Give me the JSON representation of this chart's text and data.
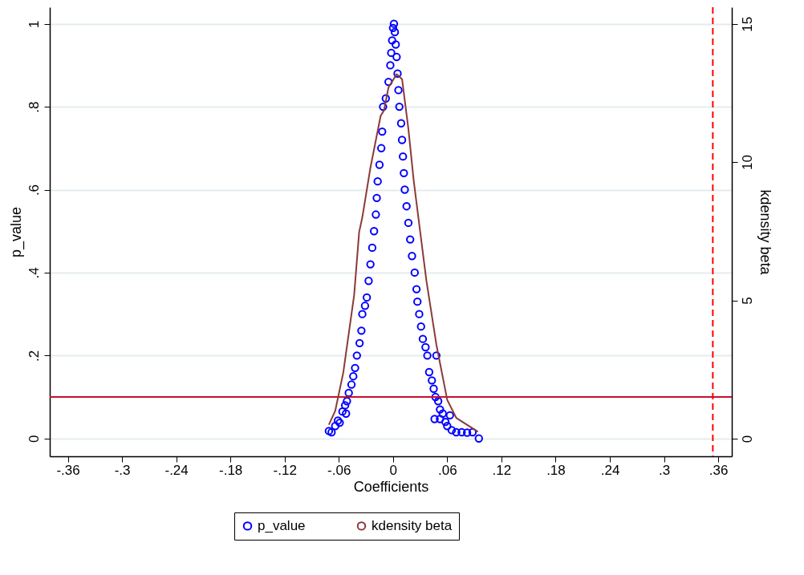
{
  "chart_data": {
    "type": "scatter",
    "xlabel": "Coefficients",
    "ylabel": "p_value",
    "y2label": "kdensity beta",
    "xlim": [
      -0.38,
      0.375
    ],
    "ylim": [
      -0.043,
      1.04
    ],
    "y2lim": [
      -0.64,
      15.6
    ],
    "xticks": [
      {
        "value": -0.36,
        "label": "-.36"
      },
      {
        "value": -0.3,
        "label": "-.3"
      },
      {
        "value": -0.24,
        "label": "-.24"
      },
      {
        "value": -0.18,
        "label": "-.18"
      },
      {
        "value": -0.12,
        "label": "-.12"
      },
      {
        "value": -0.06,
        "label": "-.06"
      },
      0,
      {
        "value": 0.06,
        "label": ".06"
      },
      {
        "value": 0.12,
        "label": ".12"
      },
      {
        "value": 0.18,
        "label": ".18"
      },
      {
        "value": 0.24,
        "label": ".24"
      },
      {
        "value": 0.3,
        "label": ".3"
      },
      {
        "value": 0.36,
        "label": ".36"
      }
    ],
    "yticks": [
      0,
      {
        "value": 0.2,
        "label": ".2"
      },
      {
        "value": 0.4,
        "label": ".4"
      },
      {
        "value": 0.6,
        "label": ".6"
      },
      {
        "value": 0.8,
        "label": ".8"
      },
      1
    ],
    "y2ticks": [
      0,
      5,
      10,
      15
    ],
    "grid": "y",
    "legend": "bottom",
    "series": [
      {
        "name": "p_value",
        "marker": "circle",
        "color": "#0000ff",
        "x": [
          0.001,
          0.0,
          0.002,
          -0.001,
          0.003,
          -0.002,
          0.004,
          -0.003,
          0.005,
          -0.005,
          0.006,
          -0.008,
          0.007,
          -0.011,
          0.009,
          -0.012,
          0.01,
          -0.013,
          0.011,
          -0.015,
          0.012,
          -0.017,
          0.013,
          -0.018,
          0.015,
          -0.019,
          0.017,
          -0.021,
          0.019,
          -0.023,
          0.021,
          -0.025,
          0.024,
          -0.027,
          0.026,
          -0.029,
          0.027,
          -0.031,
          0.029,
          -0.034,
          0.031,
          -0.035,
          0.033,
          -0.037,
          0.036,
          -0.04,
          0.038,
          0.048,
          -0.042,
          0.04,
          -0.044,
          0.043,
          -0.046,
          0.045,
          -0.049,
          0.047,
          -0.051,
          0.05,
          -0.053,
          0.052,
          -0.056,
          -0.052,
          0.055,
          0.046,
          0.052,
          0.058,
          -0.061,
          -0.059,
          -0.064,
          0.06,
          0.063,
          0.065,
          -0.071,
          -0.068,
          0.07,
          0.076,
          0.082,
          0.088,
          0.095
        ],
        "values": [
          1.0,
          0.99,
          0.98,
          0.96,
          0.95,
          0.93,
          0.92,
          0.9,
          0.88,
          0.86,
          0.84,
          0.82,
          0.8,
          0.8,
          0.76,
          0.74,
          0.72,
          0.7,
          0.68,
          0.66,
          0.64,
          0.62,
          0.6,
          0.58,
          0.56,
          0.54,
          0.52,
          0.5,
          0.48,
          0.46,
          0.44,
          0.42,
          0.4,
          0.38,
          0.36,
          0.34,
          0.33,
          0.32,
          0.3,
          0.3,
          0.27,
          0.26,
          0.24,
          0.23,
          0.22,
          0.2,
          0.2,
          0.2,
          0.17,
          0.16,
          0.15,
          0.14,
          0.13,
          0.12,
          0.11,
          0.1,
          0.09,
          0.09,
          0.08,
          0.07,
          0.065,
          0.06,
          0.06,
          0.047,
          0.047,
          0.04,
          0.043,
          0.038,
          0.03,
          0.03,
          0.056,
          0.02,
          0.018,
          0.015,
          0.015,
          0.015,
          0.014,
          0.015,
          0.0
        ]
      },
      {
        "name": "kdensity beta",
        "type": "line",
        "axis": "y2",
        "color": "#8b3a3a",
        "x": [
          -0.071,
          -0.064,
          -0.055,
          -0.043,
          -0.0375,
          -0.034,
          -0.025,
          -0.0137,
          -0.01,
          -0.005,
          0.004,
          0.01,
          0.017,
          0.023,
          0.03,
          0.037,
          0.048,
          0.06,
          0.07,
          0.094
        ],
        "values": [
          0.5,
          1.0,
          2.4,
          5.2,
          7.47,
          8.0,
          9.8,
          11.67,
          11.87,
          12.7,
          13.18,
          13.0,
          11.2,
          9.3,
          7.5,
          5.7,
          3.4,
          1.4,
          0.75,
          0.25
        ]
      }
    ],
    "ref_lines": [
      {
        "axis": "y",
        "value": 0.1,
        "color": "#c8102e",
        "line_style": "solid"
      },
      {
        "axis": "x",
        "value": 0.354,
        "color": "#ff0000",
        "line_style": "dashed"
      }
    ]
  }
}
